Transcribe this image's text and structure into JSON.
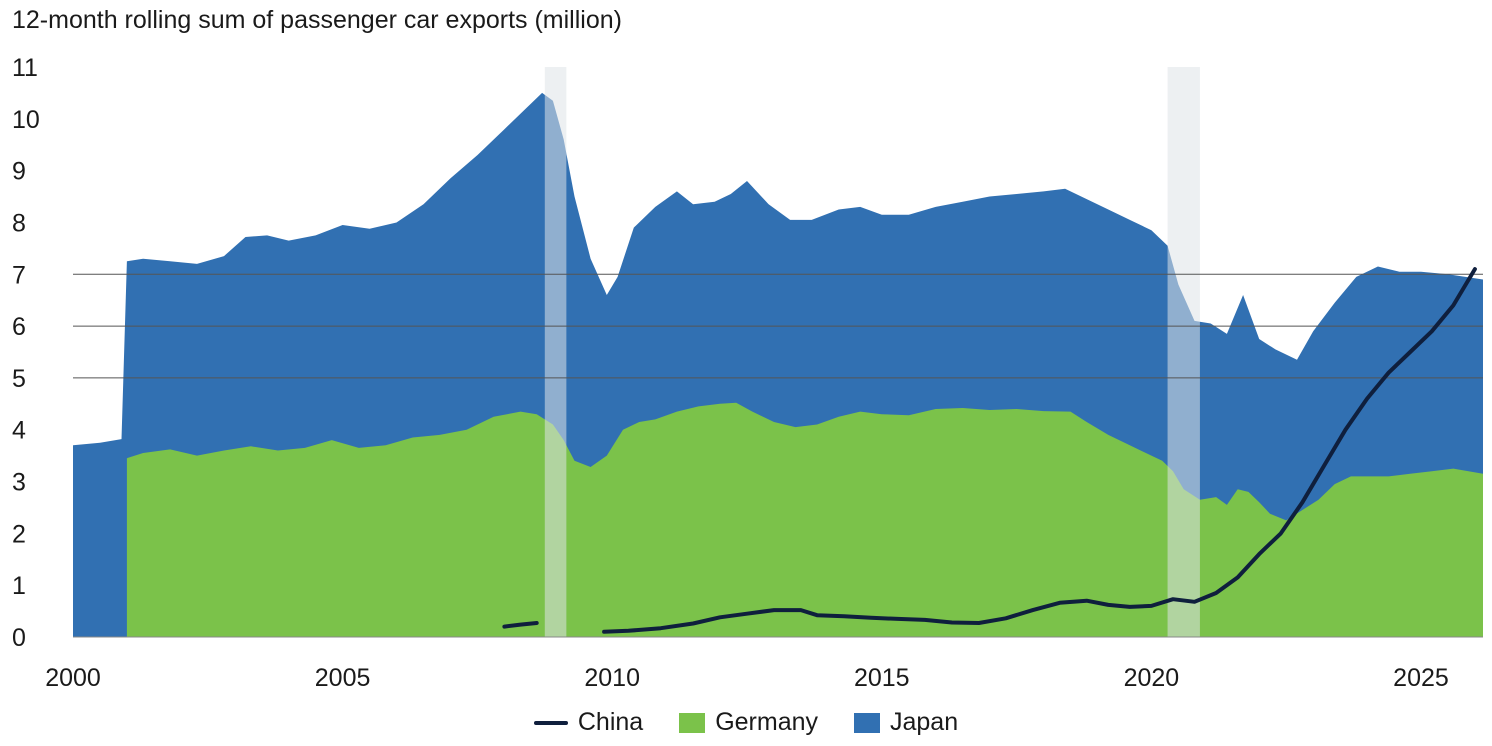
{
  "colors": {
    "china": "#0f1f3d",
    "germany": "#7bc24a",
    "japan": "#3170b2",
    "recession": "#dfe3e8",
    "grid": "#555555"
  },
  "legend": [
    {
      "label": "China",
      "key": "china",
      "kind": "line"
    },
    {
      "label": "Germany",
      "key": "germany",
      "kind": "area"
    },
    {
      "label": "Japan",
      "key": "japan",
      "kind": "area"
    }
  ],
  "chart_data": {
    "type": "area",
    "title": "12-month rolling sum of passenger car exports (million)",
    "xlim": [
      2000,
      2026.15
    ],
    "ylim": [
      0,
      11
    ],
    "xticks": [
      2000,
      2005,
      2010,
      2015,
      2020,
      2025
    ],
    "yticks": [
      0,
      1,
      2,
      3,
      4,
      5,
      6,
      7,
      8,
      9,
      10,
      11
    ],
    "gridlines_y": [
      5,
      6,
      7
    ],
    "shaded_periods": [
      [
        2008.75,
        2009.15
      ],
      [
        2020.3,
        2020.9
      ]
    ],
    "series": [
      {
        "name": "Germany",
        "key": "germany",
        "kind": "area",
        "points": [
          [
            2001.0,
            3.45
          ],
          [
            2001.3,
            3.55
          ],
          [
            2001.8,
            3.62
          ],
          [
            2002.3,
            3.5
          ],
          [
            2002.8,
            3.6
          ],
          [
            2003.3,
            3.68
          ],
          [
            2003.8,
            3.6
          ],
          [
            2004.3,
            3.65
          ],
          [
            2004.8,
            3.8
          ],
          [
            2005.3,
            3.65
          ],
          [
            2005.8,
            3.7
          ],
          [
            2006.3,
            3.85
          ],
          [
            2006.8,
            3.9
          ],
          [
            2007.3,
            4.0
          ],
          [
            2007.8,
            4.25
          ],
          [
            2008.3,
            4.35
          ],
          [
            2008.6,
            4.3
          ],
          [
            2008.9,
            4.1
          ],
          [
            2009.1,
            3.8
          ],
          [
            2009.3,
            3.4
          ],
          [
            2009.6,
            3.28
          ],
          [
            2009.9,
            3.5
          ],
          [
            2010.2,
            4.0
          ],
          [
            2010.5,
            4.15
          ],
          [
            2010.8,
            4.2
          ],
          [
            2011.2,
            4.35
          ],
          [
            2011.6,
            4.45
          ],
          [
            2012.0,
            4.5
          ],
          [
            2012.3,
            4.52
          ],
          [
            2012.6,
            4.35
          ],
          [
            2013.0,
            4.15
          ],
          [
            2013.4,
            4.05
          ],
          [
            2013.8,
            4.1
          ],
          [
            2014.2,
            4.25
          ],
          [
            2014.6,
            4.35
          ],
          [
            2015.0,
            4.3
          ],
          [
            2015.5,
            4.28
          ],
          [
            2016.0,
            4.4
          ],
          [
            2016.5,
            4.42
          ],
          [
            2017.0,
            4.38
          ],
          [
            2017.5,
            4.4
          ],
          [
            2018.0,
            4.36
          ],
          [
            2018.5,
            4.35
          ],
          [
            2018.8,
            4.15
          ],
          [
            2019.2,
            3.9
          ],
          [
            2019.6,
            3.7
          ],
          [
            2020.0,
            3.5
          ],
          [
            2020.2,
            3.4
          ],
          [
            2020.4,
            3.2
          ],
          [
            2020.6,
            2.85
          ],
          [
            2020.9,
            2.65
          ],
          [
            2021.2,
            2.7
          ],
          [
            2021.4,
            2.55
          ],
          [
            2021.6,
            2.85
          ],
          [
            2021.8,
            2.8
          ],
          [
            2022.0,
            2.6
          ],
          [
            2022.2,
            2.38
          ],
          [
            2022.5,
            2.25
          ],
          [
            2022.8,
            2.45
          ],
          [
            2023.1,
            2.65
          ],
          [
            2023.4,
            2.95
          ],
          [
            2023.7,
            3.1
          ],
          [
            2024.0,
            3.1
          ],
          [
            2024.4,
            3.1
          ],
          [
            2024.8,
            3.15
          ],
          [
            2025.2,
            3.2
          ],
          [
            2025.6,
            3.25
          ],
          [
            2026.15,
            3.15
          ]
        ]
      },
      {
        "name": "Japan",
        "key": "japan",
        "kind": "area",
        "points": [
          [
            2000.0,
            3.7
          ],
          [
            2000.5,
            3.75
          ],
          [
            2000.9,
            3.82
          ],
          [
            2001.0,
            7.25
          ],
          [
            2001.3,
            7.3
          ],
          [
            2001.8,
            7.25
          ],
          [
            2002.3,
            7.2
          ],
          [
            2002.8,
            7.35
          ],
          [
            2003.2,
            7.72
          ],
          [
            2003.6,
            7.75
          ],
          [
            2004.0,
            7.65
          ],
          [
            2004.5,
            7.75
          ],
          [
            2005.0,
            7.95
          ],
          [
            2005.5,
            7.88
          ],
          [
            2006.0,
            8.0
          ],
          [
            2006.5,
            8.35
          ],
          [
            2007.0,
            8.85
          ],
          [
            2007.5,
            9.3
          ],
          [
            2008.0,
            9.8
          ],
          [
            2008.4,
            10.2
          ],
          [
            2008.7,
            10.5
          ],
          [
            2008.9,
            10.35
          ],
          [
            2009.1,
            9.6
          ],
          [
            2009.3,
            8.5
          ],
          [
            2009.6,
            7.3
          ],
          [
            2009.9,
            6.6
          ],
          [
            2010.1,
            6.95
          ],
          [
            2010.4,
            7.9
          ],
          [
            2010.8,
            8.3
          ],
          [
            2011.2,
            8.6
          ],
          [
            2011.5,
            8.35
          ],
          [
            2011.9,
            8.4
          ],
          [
            2012.2,
            8.55
          ],
          [
            2012.5,
            8.8
          ],
          [
            2012.9,
            8.35
          ],
          [
            2013.3,
            8.05
          ],
          [
            2013.7,
            8.05
          ],
          [
            2014.2,
            8.25
          ],
          [
            2014.6,
            8.3
          ],
          [
            2015.0,
            8.15
          ],
          [
            2015.5,
            8.15
          ],
          [
            2016.0,
            8.3
          ],
          [
            2016.5,
            8.4
          ],
          [
            2017.0,
            8.5
          ],
          [
            2017.5,
            8.55
          ],
          [
            2018.0,
            8.6
          ],
          [
            2018.4,
            8.65
          ],
          [
            2018.8,
            8.45
          ],
          [
            2019.2,
            8.25
          ],
          [
            2019.6,
            8.05
          ],
          [
            2020.0,
            7.85
          ],
          [
            2020.3,
            7.55
          ],
          [
            2020.5,
            6.8
          ],
          [
            2020.8,
            6.1
          ],
          [
            2021.1,
            6.05
          ],
          [
            2021.4,
            5.85
          ],
          [
            2021.7,
            6.6
          ],
          [
            2022.0,
            5.75
          ],
          [
            2022.3,
            5.55
          ],
          [
            2022.7,
            5.35
          ],
          [
            2023.0,
            5.9
          ],
          [
            2023.4,
            6.45
          ],
          [
            2023.8,
            6.95
          ],
          [
            2024.2,
            7.15
          ],
          [
            2024.6,
            7.05
          ],
          [
            2025.0,
            7.05
          ],
          [
            2025.5,
            7.0
          ],
          [
            2026.15,
            6.9
          ]
        ]
      },
      {
        "name": "China",
        "key": "china",
        "kind": "line",
        "segments": [
          [
            [
              2008.0,
              0.2
            ],
            [
              2008.3,
              0.24
            ],
            [
              2008.6,
              0.27
            ]
          ],
          [
            [
              2009.85,
              0.1
            ],
            [
              2010.3,
              0.12
            ],
            [
              2010.9,
              0.17
            ],
            [
              2011.5,
              0.26
            ],
            [
              2012.0,
              0.38
            ],
            [
              2012.5,
              0.45
            ],
            [
              2013.0,
              0.52
            ],
            [
              2013.5,
              0.52
            ],
            [
              2013.8,
              0.42
            ],
            [
              2014.3,
              0.4
            ],
            [
              2014.8,
              0.37
            ],
            [
              2015.3,
              0.35
            ],
            [
              2015.8,
              0.33
            ],
            [
              2016.3,
              0.28
            ],
            [
              2016.8,
              0.27
            ],
            [
              2017.3,
              0.36
            ],
            [
              2017.8,
              0.52
            ],
            [
              2018.3,
              0.66
            ],
            [
              2018.8,
              0.7
            ],
            [
              2019.2,
              0.62
            ],
            [
              2019.6,
              0.58
            ],
            [
              2020.0,
              0.6
            ],
            [
              2020.4,
              0.73
            ],
            [
              2020.8,
              0.68
            ],
            [
              2021.2,
              0.85
            ],
            [
              2021.6,
              1.15
            ],
            [
              2022.0,
              1.6
            ],
            [
              2022.4,
              2.0
            ],
            [
              2022.8,
              2.6
            ],
            [
              2023.2,
              3.3
            ],
            [
              2023.6,
              4.0
            ],
            [
              2024.0,
              4.6
            ],
            [
              2024.4,
              5.1
            ],
            [
              2024.8,
              5.5
            ],
            [
              2025.2,
              5.9
            ],
            [
              2025.6,
              6.4
            ],
            [
              2026.0,
              7.1
            ]
          ]
        ]
      }
    ]
  }
}
